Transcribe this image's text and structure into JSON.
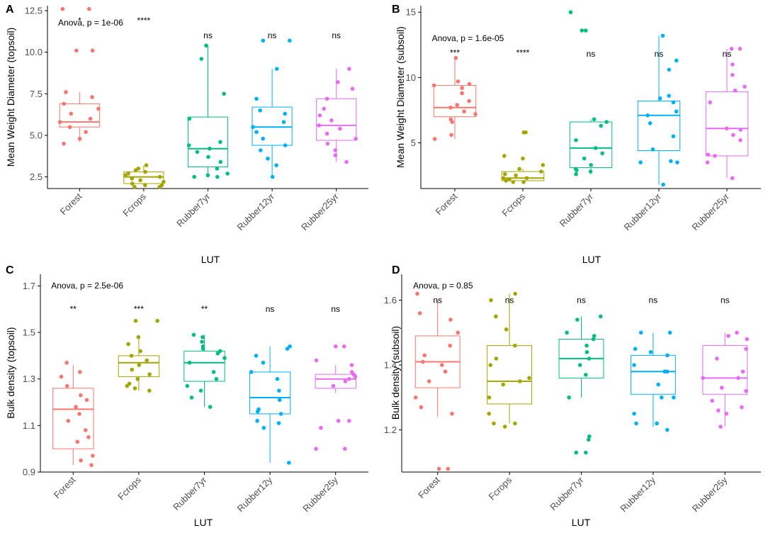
{
  "colors": {
    "groups": [
      "#F8766D",
      "#A3A500",
      "#00BF7D",
      "#00B0F6",
      "#E76BF3"
    ],
    "axis": "#000000",
    "tick_text": "#4D4D4D"
  },
  "chart_data": [
    {
      "panel": "A",
      "type": "box",
      "title": "",
      "xlabel": "LUT",
      "ylabel": "Mean Weight Diameter (topsoil)",
      "categories": [
        "Forest",
        "Fcrops",
        "Rubber7yr",
        "Rubber12yr",
        "Rubber25yr"
      ],
      "ylim": [
        1.8,
        12.8
      ],
      "yticks": [
        2.5,
        5.0,
        7.5,
        10.0,
        12.5
      ],
      "ytick_labels": [
        "2.5",
        "5.0",
        "7.5",
        "10.0",
        "12.5"
      ],
      "anova": "Anova, p = 1e-06",
      "signif": [
        "*",
        "****",
        "ns",
        "ns",
        "ns"
      ],
      "signif_y": [
        11.9,
        11.9,
        11.0,
        11.0,
        11.0
      ],
      "boxes": [
        {
          "min": 4.6,
          "q1": 5.5,
          "median": 5.8,
          "q3": 6.9,
          "max": 7.6
        },
        {
          "min": 2.0,
          "q1": 2.1,
          "median": 2.5,
          "q3": 2.8,
          "max": 3.2
        },
        {
          "min": 2.5,
          "q1": 3.1,
          "median": 4.2,
          "q3": 6.1,
          "max": 10.4
        },
        {
          "min": 2.5,
          "q1": 4.4,
          "median": 5.5,
          "q3": 6.7,
          "max": 9.0
        },
        {
          "min": 3.4,
          "q1": 4.7,
          "median": 5.6,
          "q3": 7.2,
          "max": 9.0
        }
      ],
      "points": [
        [
          12.6,
          12.6,
          10.1,
          10.1,
          7.6,
          7.3,
          6.9,
          6.6,
          6.3,
          6.0,
          5.8,
          5.5,
          5.2,
          4.8,
          4.5
        ],
        [
          3.2,
          3.0,
          2.9,
          2.8,
          2.7,
          2.6,
          2.5,
          2.4,
          2.3,
          2.2,
          2.1,
          2.0,
          2.0,
          1.9,
          1.9
        ],
        [
          10.4,
          9.6,
          7.5,
          6.0,
          4.6,
          4.4,
          4.2,
          4.0,
          3.7,
          3.4,
          3.0,
          2.7,
          2.6,
          2.5,
          2.5
        ],
        [
          10.7,
          10.7,
          9.0,
          7.2,
          6.5,
          6.3,
          5.8,
          5.5,
          5.2,
          4.8,
          4.4,
          4.1,
          3.6,
          3.2,
          2.5
        ],
        [
          9.0,
          8.2,
          7.8,
          7.2,
          6.6,
          6.2,
          5.9,
          5.6,
          5.4,
          5.1,
          4.8,
          4.5,
          4.1,
          3.8,
          3.4
        ]
      ]
    },
    {
      "panel": "B",
      "type": "box",
      "title": "",
      "xlabel": "LUT",
      "ylabel": "Mean Weight Diameter (subsoil)",
      "categories": [
        "Forest",
        "Fcrops",
        "Rubber7yr",
        "Rubber12yr",
        "Rubber25yr"
      ],
      "ylim": [
        1.5,
        15.5
      ],
      "yticks": [
        5,
        10,
        15
      ],
      "ytick_labels": [
        "5",
        "10",
        "15"
      ],
      "anova": "Anova, p = 1.6e-05",
      "signif": [
        "***",
        "****",
        "ns",
        "ns",
        "ns"
      ],
      "signif_y": [
        11.9,
        11.9,
        11.8,
        11.8,
        11.8
      ],
      "boxes": [
        {
          "min": 5.3,
          "q1": 7.0,
          "median": 7.7,
          "q3": 9.4,
          "max": 11.5
        },
        {
          "min": 2.0,
          "q1": 2.1,
          "median": 2.3,
          "q3": 2.8,
          "max": 3.0
        },
        {
          "min": 2.6,
          "q1": 3.1,
          "median": 4.6,
          "q3": 6.6,
          "max": 6.8
        },
        {
          "min": 1.8,
          "q1": 4.4,
          "median": 7.1,
          "q3": 8.2,
          "max": 13.2
        },
        {
          "min": 2.3,
          "q1": 4.0,
          "median": 6.1,
          "q3": 8.9,
          "max": 12.2
        }
      ],
      "points": [
        [
          11.5,
          9.7,
          9.5,
          9.4,
          9.2,
          8.8,
          8.2,
          7.9,
          7.7,
          7.4,
          7.2,
          6.8,
          6.6,
          5.6,
          5.3
        ],
        [
          5.8,
          5.8,
          4.0,
          3.8,
          3.3,
          3.0,
          2.8,
          2.6,
          2.5,
          2.3,
          2.3,
          2.2,
          2.1,
          2.0,
          2.0
        ],
        [
          15.0,
          13.6,
          13.6,
          6.8,
          6.6,
          6.3,
          5.2,
          4.6,
          4.2,
          3.8,
          3.3,
          3.0,
          2.9,
          2.8,
          2.6
        ],
        [
          13.2,
          11.3,
          10.6,
          8.6,
          8.4,
          8.1,
          7.4,
          7.1,
          6.5,
          5.5,
          4.5,
          3.6,
          3.5,
          3.5,
          1.8
        ],
        [
          12.2,
          12.2,
          11.0,
          10.2,
          9.3,
          9.0,
          8.1,
          6.1,
          6.0,
          5.6,
          5.2,
          4.1,
          4.0,
          3.5,
          2.3
        ]
      ]
    },
    {
      "panel": "C",
      "type": "box",
      "title": "",
      "xlabel": "LUT",
      "ylabel": "Bulk density (topsoil)",
      "categories": [
        "Forest",
        "Fcrops",
        "Rubber7yr",
        "Rubber12y",
        "Rubber25y"
      ],
      "ylim": [
        0.9,
        1.75
      ],
      "yticks": [
        0.9,
        1.1,
        1.3,
        1.5,
        1.7
      ],
      "ytick_labels": [
        "0.9",
        "1.1",
        "1.3",
        "1.5",
        "1.7"
      ],
      "anova": "Anova, p = 2.5e-06",
      "signif": [
        "**",
        "***",
        "**",
        "ns",
        "ns"
      ],
      "signif_y": [
        1.6,
        1.6,
        1.6,
        1.6,
        1.6
      ],
      "boxes": [
        {
          "min": 0.93,
          "q1": 1.0,
          "median": 1.17,
          "q3": 1.26,
          "max": 1.36
        },
        {
          "min": 1.25,
          "q1": 1.31,
          "median": 1.37,
          "q3": 1.4,
          "max": 1.48
        },
        {
          "min": 1.18,
          "q1": 1.29,
          "median": 1.37,
          "q3": 1.42,
          "max": 1.49
        },
        {
          "min": 0.94,
          "q1": 1.15,
          "median": 1.22,
          "q3": 1.33,
          "max": 1.44
        },
        {
          "min": 1.24,
          "q1": 1.26,
          "median": 1.3,
          "q3": 1.32,
          "max": 1.36
        }
      ],
      "points": [
        [
          1.37,
          1.33,
          1.31,
          1.27,
          1.23,
          1.21,
          1.18,
          1.15,
          1.12,
          1.08,
          1.05,
          1.03,
          0.97,
          0.95,
          0.93
        ],
        [
          1.55,
          1.55,
          1.48,
          1.45,
          1.42,
          1.4,
          1.38,
          1.36,
          1.34,
          1.32,
          1.3,
          1.28,
          1.27,
          1.26,
          1.25
        ],
        [
          1.49,
          1.48,
          1.46,
          1.44,
          1.43,
          1.42,
          1.41,
          1.39,
          1.37,
          1.33,
          1.3,
          1.27,
          1.25,
          1.22,
          1.18
        ],
        [
          1.44,
          1.43,
          1.4,
          1.37,
          1.33,
          1.3,
          1.25,
          1.21,
          1.17,
          1.16,
          1.15,
          1.12,
          1.11,
          1.09,
          0.94
        ],
        [
          1.44,
          1.44,
          1.38,
          1.36,
          1.33,
          1.32,
          1.31,
          1.3,
          1.29,
          1.27,
          1.12,
          1.12,
          1.09,
          1.0,
          1.0
        ]
      ]
    },
    {
      "panel": "D",
      "type": "box",
      "title": "",
      "xlabel": "LUT",
      "ylabel": "Bulk density (subsoil)",
      "categories": [
        "Forest",
        "Fcrops",
        "Rubber7yr",
        "Rubber12y",
        "Rubber25y"
      ],
      "ylim": [
        1.07,
        1.68
      ],
      "yticks": [
        1.2,
        1.4,
        1.6
      ],
      "ytick_labels": [
        "1.2",
        "1.4",
        "1.6"
      ],
      "anova": "Anova, p = 0.85",
      "signif": [
        "ns",
        "ns",
        "ns",
        "ns",
        "ns"
      ],
      "signif_y": [
        1.6,
        1.6,
        1.6,
        1.6,
        1.6
      ],
      "boxes": [
        {
          "min": 1.24,
          "q1": 1.33,
          "median": 1.41,
          "q3": 1.49,
          "max": 1.6
        },
        {
          "min": 1.22,
          "q1": 1.28,
          "median": 1.35,
          "q3": 1.46,
          "max": 1.62
        },
        {
          "min": 1.3,
          "q1": 1.36,
          "median": 1.42,
          "q3": 1.48,
          "max": 1.55
        },
        {
          "min": 1.21,
          "q1": 1.31,
          "median": 1.38,
          "q3": 1.43,
          "max": 1.5
        },
        {
          "min": 1.21,
          "q1": 1.31,
          "median": 1.36,
          "q3": 1.46,
          "max": 1.5
        }
      ],
      "points": [
        [
          1.62,
          1.56,
          1.54,
          1.5,
          1.46,
          1.43,
          1.41,
          1.4,
          1.38,
          1.35,
          1.3,
          1.27,
          1.25,
          1.08,
          1.08
        ],
        [
          1.62,
          1.6,
          1.55,
          1.51,
          1.46,
          1.42,
          1.4,
          1.36,
          1.35,
          1.34,
          1.3,
          1.25,
          1.22,
          1.22,
          1.21
        ],
        [
          1.55,
          1.54,
          1.5,
          1.49,
          1.48,
          1.46,
          1.44,
          1.42,
          1.4,
          1.37,
          1.3,
          1.18,
          1.17,
          1.13,
          1.13
        ],
        [
          1.5,
          1.5,
          1.45,
          1.44,
          1.43,
          1.4,
          1.38,
          1.38,
          1.34,
          1.3,
          1.3,
          1.25,
          1.22,
          1.22,
          1.2
        ],
        [
          1.5,
          1.49,
          1.48,
          1.45,
          1.42,
          1.38,
          1.36,
          1.36,
          1.33,
          1.32,
          1.29,
          1.27,
          1.26,
          1.25,
          1.21
        ]
      ]
    }
  ]
}
